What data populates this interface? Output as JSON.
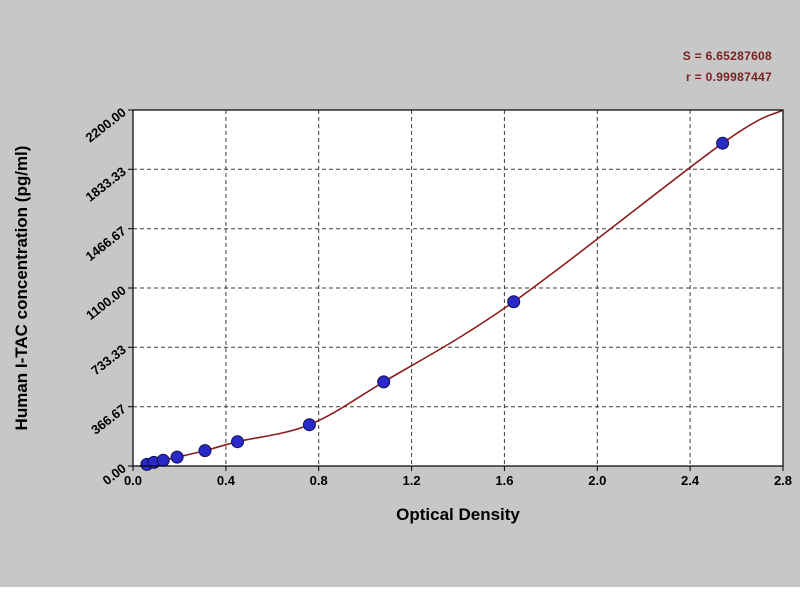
{
  "window": {
    "background": "#c7c7c7"
  },
  "stats": {
    "s_line": "S = 6.65287608",
    "r_line": "r = 0.99987447"
  },
  "chart_data": {
    "type": "scatter",
    "title": "",
    "xlabel": "Optical Density",
    "ylabel": "Human I-TAC concentration (pg/ml)",
    "xlim": [
      0,
      2.8
    ],
    "ylim": [
      0,
      2200
    ],
    "x_ticks": [
      0,
      0.4,
      0.8,
      1.2,
      1.6,
      2.0,
      2.4,
      2.8
    ],
    "x_tick_labels": [
      "0.0",
      "0.4",
      "0.8",
      "1.2",
      "1.6",
      "2.0",
      "2.4",
      "2.8"
    ],
    "y_ticks": [
      0,
      366.67,
      733.33,
      1100,
      1466.67,
      1833.33,
      2200
    ],
    "y_tick_labels": [
      "0.00",
      "366.67",
      "733.33",
      "1100.00",
      "1466.67",
      "1833.33",
      "2200.00"
    ],
    "grid": true,
    "legend": "none",
    "series": [
      {
        "name": "standard-points",
        "type": "scatter",
        "color": "#2929c8",
        "points": [
          [
            0.06,
            10
          ],
          [
            0.09,
            22
          ],
          [
            0.13,
            35
          ],
          [
            0.19,
            55
          ],
          [
            0.31,
            95
          ],
          [
            0.45,
            150
          ],
          [
            0.76,
            255
          ],
          [
            1.08,
            520
          ],
          [
            1.64,
            1015
          ],
          [
            2.54,
            1995
          ]
        ]
      },
      {
        "name": "fitted-curve",
        "type": "line",
        "color": "#8b1e1e",
        "points": [
          [
            0.03,
            0
          ],
          [
            0.06,
            10
          ],
          [
            0.09,
            22
          ],
          [
            0.13,
            35
          ],
          [
            0.19,
            55
          ],
          [
            0.31,
            95
          ],
          [
            0.45,
            150
          ],
          [
            0.76,
            255
          ],
          [
            1.08,
            520
          ],
          [
            1.64,
            1015
          ],
          [
            2.54,
            1995
          ],
          [
            2.8,
            2200
          ]
        ]
      }
    ],
    "colors": {
      "curve": "#8b1e1e",
      "point_fill": "#2929c8",
      "point_stroke": "#10104e",
      "grid_line": "#3c3c3c",
      "plot_bg": "#ffffff",
      "page_bg": "#c7c7c7",
      "axis": "#000000",
      "tick_text": "#000000",
      "stats_text": "#7a1f1f"
    }
  }
}
